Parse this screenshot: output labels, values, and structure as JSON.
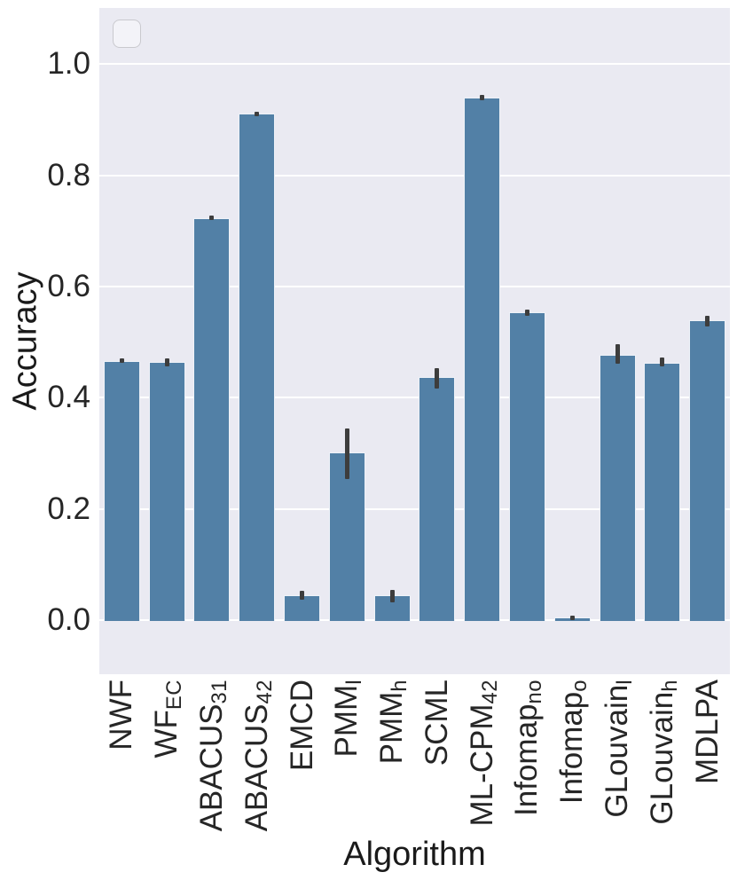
{
  "figure": {
    "background": "#ffffff"
  },
  "plot_style": {
    "plot_background": "#eaeaf2",
    "gridline_color": "#ffffff",
    "bar_color": "#5280a6",
    "bar_edge_color": "#eef2f8",
    "error_bar_color": "#3d3d3d",
    "tick_text_color": "#262626",
    "axis_title_color": "#1a1a1a"
  },
  "legend": {
    "visible": true,
    "entries": []
  },
  "chart_data": {
    "type": "bar",
    "title": "",
    "xlabel": "Algorithm",
    "ylabel": "Accuracy",
    "categories": [
      "NWF",
      "WF_EC",
      "ABACUS_31",
      "ABACUS_42",
      "EMCD",
      "PMM_l",
      "PMM_h",
      "SCML",
      "ML-CPM_42",
      "Infomap_no",
      "Infomap_o",
      "GLouvain_l",
      "GLouvain_h",
      "MDLPA"
    ],
    "categories_rich": [
      {
        "text": "NWF",
        "sub": ""
      },
      {
        "text": "WF",
        "sub": "EC"
      },
      {
        "text": "ABACUS",
        "sub": "31"
      },
      {
        "text": "ABACUS",
        "sub": "42"
      },
      {
        "text": "EMCD",
        "sub": ""
      },
      {
        "text": "PMM",
        "sub": "l"
      },
      {
        "text": "PMM",
        "sub": "h"
      },
      {
        "text": "SCML",
        "sub": ""
      },
      {
        "text": "ML-CPM",
        "sub": "42"
      },
      {
        "text": "Infomap",
        "sub": "no"
      },
      {
        "text": "Infomap",
        "sub": "o"
      },
      {
        "text": "GLouvain",
        "sub": "l"
      },
      {
        "text": "GLouvain",
        "sub": "h"
      },
      {
        "text": "MDLPA",
        "sub": ""
      }
    ],
    "values": [
      0.466,
      0.464,
      0.723,
      0.911,
      0.044,
      0.302,
      0.044,
      0.437,
      0.94,
      0.554,
      0.004,
      0.477,
      0.463,
      0.539
    ],
    "error_bars": [
      [
        0.462,
        0.47
      ],
      [
        0.456,
        0.471
      ],
      [
        0.719,
        0.727
      ],
      [
        0.907,
        0.915
      ],
      [
        0.037,
        0.053
      ],
      [
        0.254,
        0.345
      ],
      [
        0.032,
        0.055
      ],
      [
        0.416,
        0.453
      ],
      [
        0.935,
        0.945
      ],
      [
        0.548,
        0.559
      ],
      [
        0.001,
        0.008
      ],
      [
        0.461,
        0.496
      ],
      [
        0.456,
        0.472
      ],
      [
        0.528,
        0.548
      ]
    ],
    "yticks": [
      0.0,
      0.2,
      0.4,
      0.6,
      0.8,
      1.0
    ],
    "ytick_labels": [
      "0.0",
      "0.2",
      "0.4",
      "0.6",
      "0.8",
      "1.0"
    ],
    "ylim": [
      -0.1,
      1.1
    ],
    "grid": true,
    "legend_position": "upper left"
  }
}
